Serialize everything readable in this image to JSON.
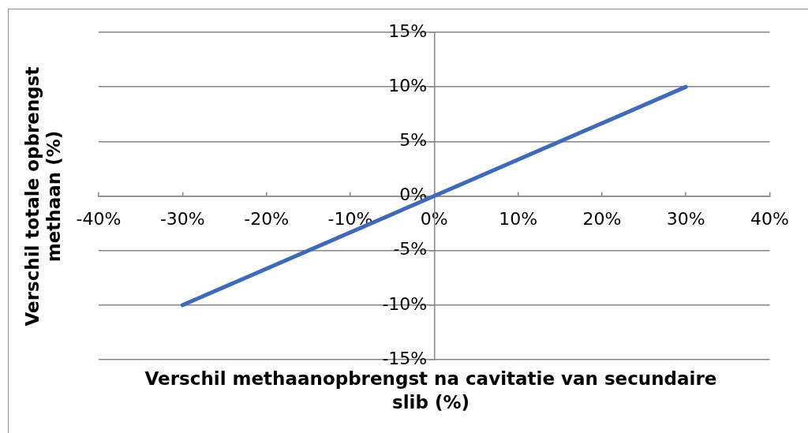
{
  "chart_data": {
    "type": "line",
    "xlabel": "Verschil methaanopbrengst na cavitatie van secundaire slib (%)",
    "ylabel": "Verschil totale opbrengst methaan (%)",
    "x": [
      -30,
      30
    ],
    "series": [
      {
        "color": "#4169b9",
        "values": [
          -10,
          10
        ]
      }
    ],
    "xlim": [
      -40,
      40
    ],
    "xticks": [
      {
        "value": -40,
        "label": "-40%"
      },
      {
        "value": -30,
        "label": "-30%"
      },
      {
        "value": -20,
        "label": "-20%"
      },
      {
        "value": -10,
        "label": "-10%"
      },
      {
        "value": 0,
        "label": "0%"
      },
      {
        "value": 10,
        "label": "10%"
      },
      {
        "value": 20,
        "label": "20%"
      },
      {
        "value": 30,
        "label": "30%"
      },
      {
        "value": 40,
        "label": "40%"
      }
    ],
    "ylim": [
      -15,
      15
    ],
    "yticks": [
      {
        "value": -15,
        "label": "-15%"
      },
      {
        "value": -10,
        "label": "-10%"
      },
      {
        "value": -5,
        "label": "-5%"
      },
      {
        "value": 0,
        "label": "0%"
      },
      {
        "value": 5,
        "label": "5%"
      },
      {
        "value": 10,
        "label": "10%"
      },
      {
        "value": 15,
        "label": "15%"
      }
    ],
    "grid": "y",
    "marker": "none",
    "line_style": "solid"
  }
}
